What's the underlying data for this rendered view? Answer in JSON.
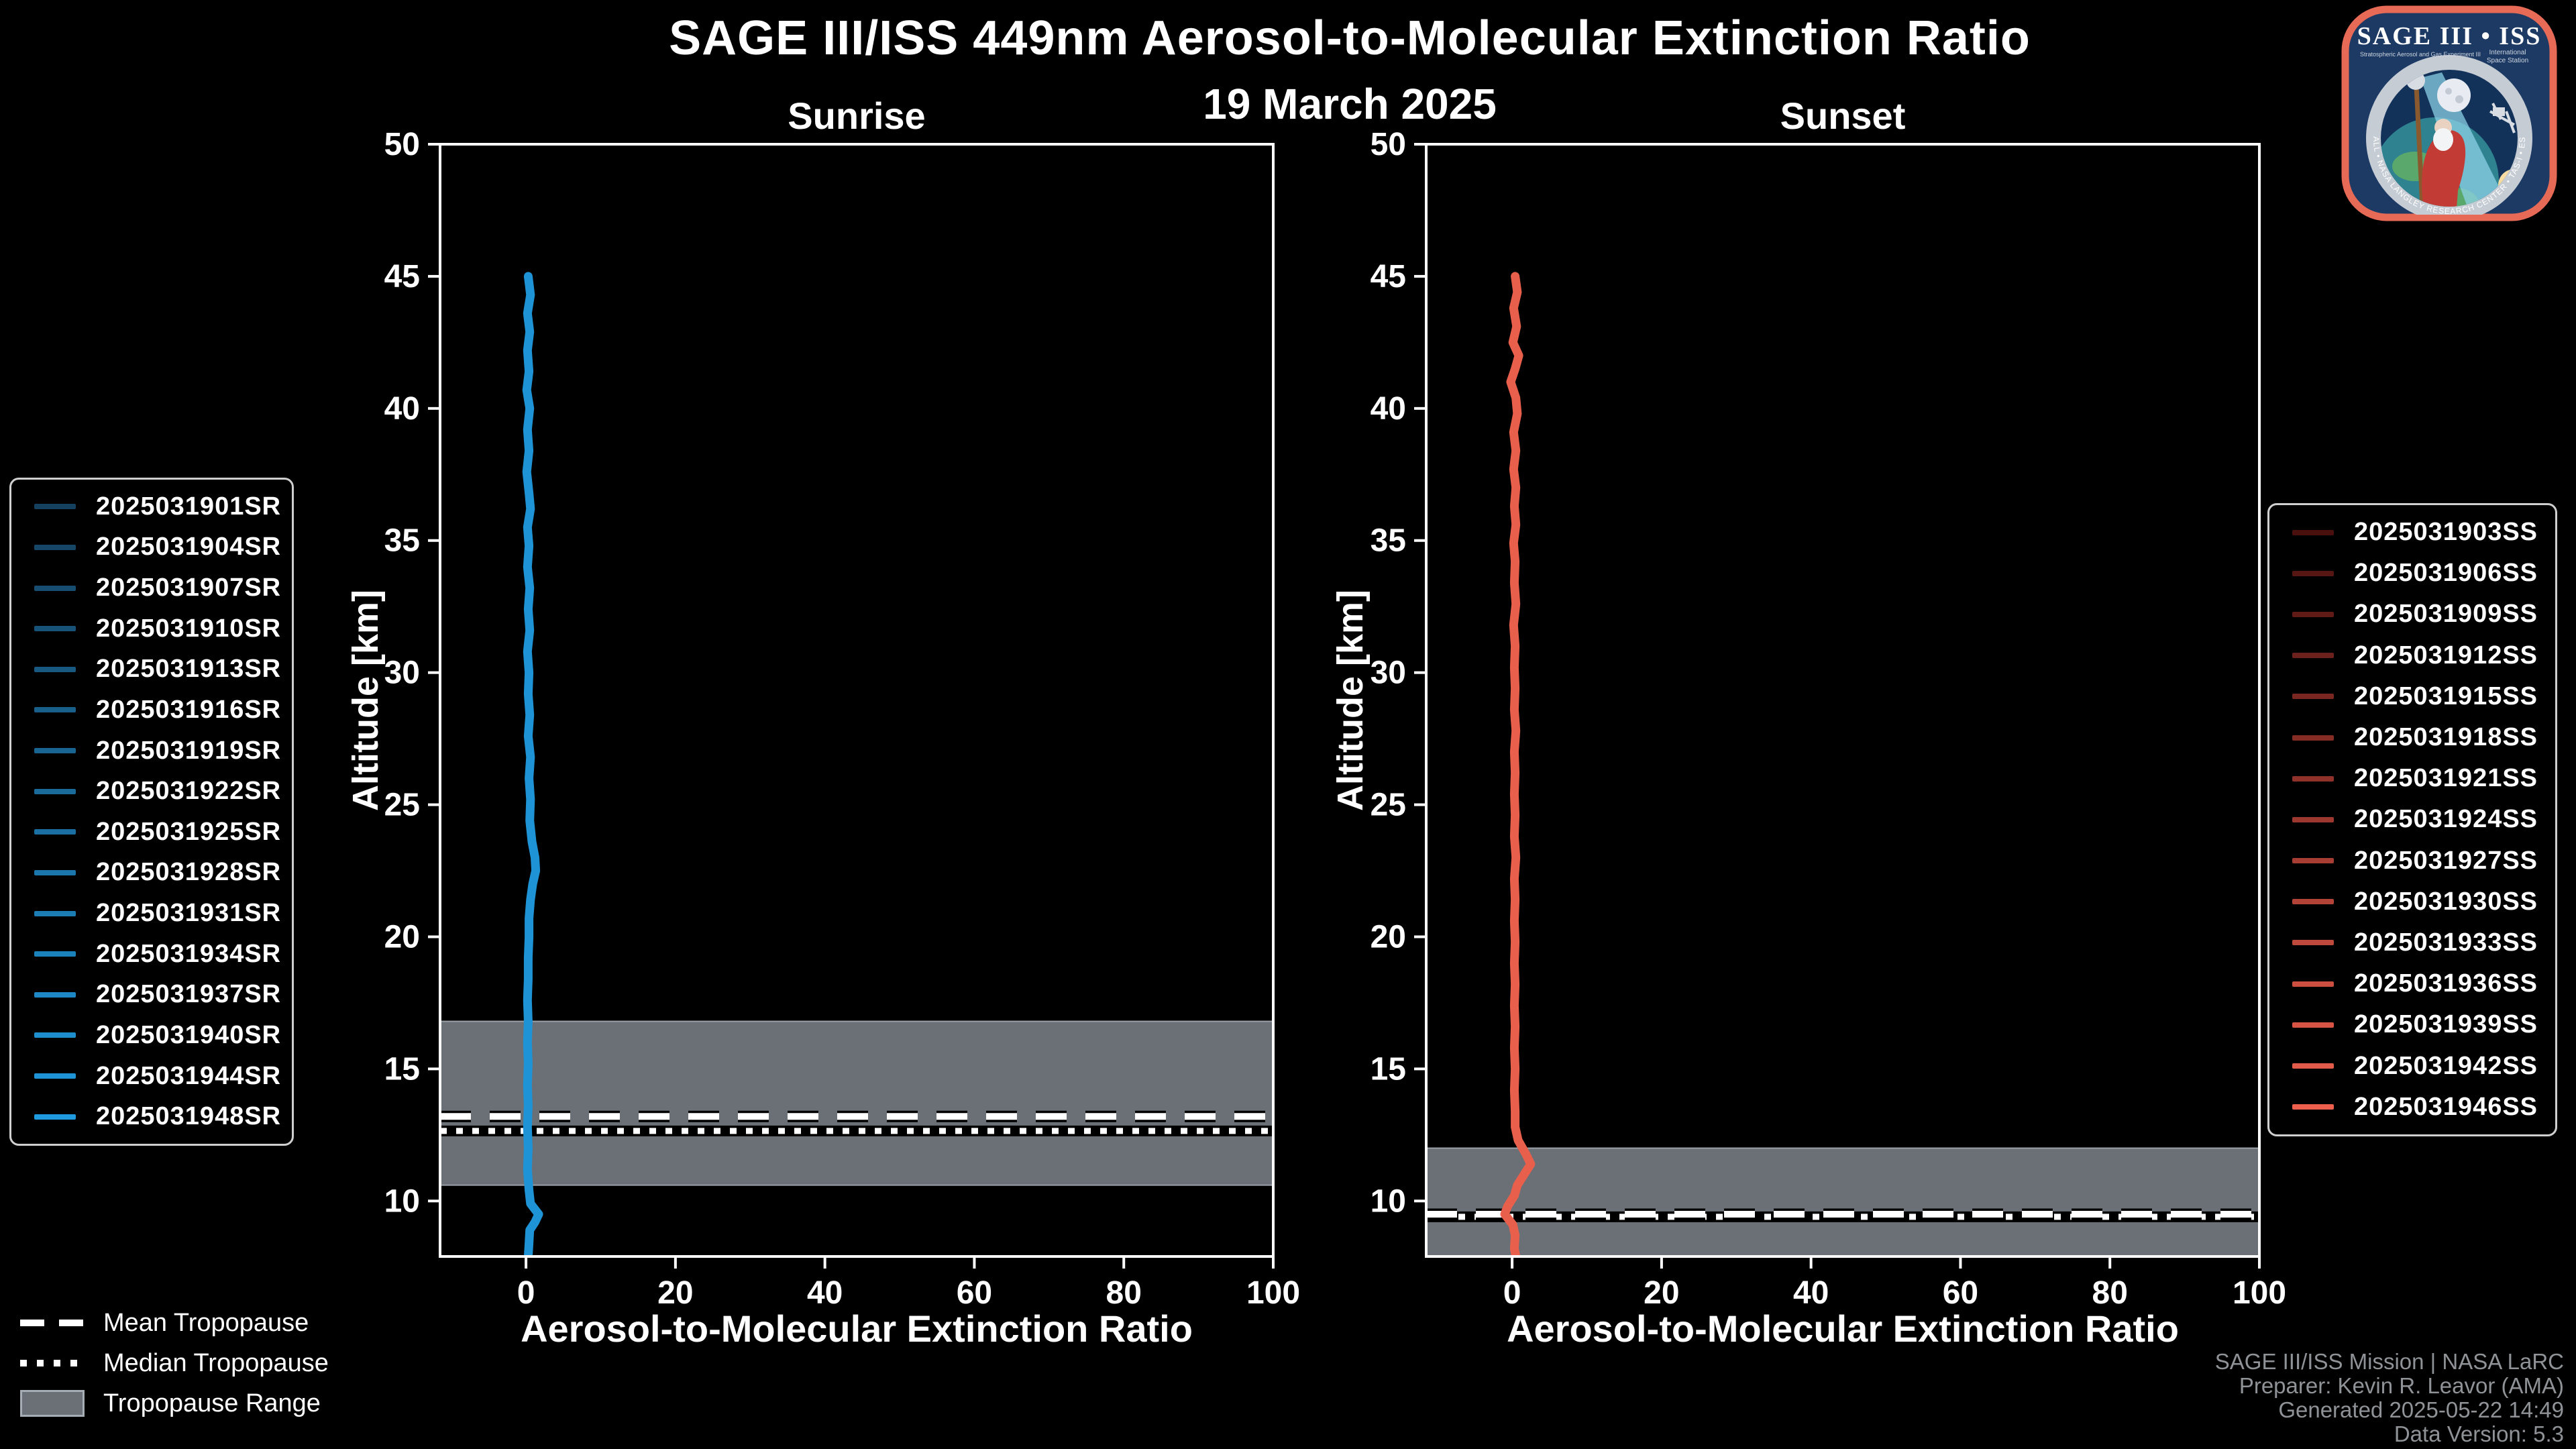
{
  "figure": {
    "title": "SAGE III/ISS 449nm Aerosol-to-Molecular Extinction Ratio",
    "date": "19 March 2025",
    "background": "#000000"
  },
  "panels": [
    {
      "title": "Sunrise",
      "xlabel": "Aerosol-to-Molecular Extinction Ratio",
      "ylabel": "Altitude [km]"
    },
    {
      "title": "Sunset",
      "xlabel": "Aerosol-to-Molecular Extinction Ratio",
      "ylabel": "Altitude [km]"
    }
  ],
  "tropopause_legend": {
    "mean_label": "Mean Tropopause",
    "median_label": "Median Tropopause",
    "range_label": "Tropopause Range",
    "range_color": "#6b7077",
    "range_edge_color": "#9aa0a7",
    "line_color": "#ffffff"
  },
  "event_legends": {
    "sunrise": {
      "entries": [
        {
          "label": "2025031901SR",
          "color": "#15415F"
        },
        {
          "label": "2025031904SR",
          "color": "#164767"
        },
        {
          "label": "2025031907SR",
          "color": "#164D70"
        },
        {
          "label": "2025031910SR",
          "color": "#175378"
        },
        {
          "label": "2025031913SR",
          "color": "#185981"
        },
        {
          "label": "2025031916SR",
          "color": "#185F89"
        },
        {
          "label": "2025031919SR",
          "color": "#196592"
        },
        {
          "label": "2025031922SR",
          "color": "#1A6B9A"
        },
        {
          "label": "2025031925SR",
          "color": "#1A70A3"
        },
        {
          "label": "2025031928SR",
          "color": "#1B76AB"
        },
        {
          "label": "2025031931SR",
          "color": "#1C7CB4"
        },
        {
          "label": "2025031934SR",
          "color": "#1C82BC"
        },
        {
          "label": "2025031937SR",
          "color": "#1D88C5"
        },
        {
          "label": "2025031940SR",
          "color": "#1E8ECD"
        },
        {
          "label": "2025031944SR",
          "color": "#1E94D6"
        },
        {
          "label": "2025031948SR",
          "color": "#1F9ADE"
        }
      ]
    },
    "sunset": {
      "entries": [
        {
          "label": "2025031903SS",
          "color": "#4A100E"
        },
        {
          "label": "2025031906SS",
          "color": "#561613"
        },
        {
          "label": "2025031909SS",
          "color": "#611B17"
        },
        {
          "label": "2025031912SS",
          "color": "#6D211C"
        },
        {
          "label": "2025031915SS",
          "color": "#792720"
        },
        {
          "label": "2025031918SS",
          "color": "#852C25"
        },
        {
          "label": "2025031921SS",
          "color": "#903229"
        },
        {
          "label": "2025031924SS",
          "color": "#9C382E"
        },
        {
          "label": "2025031927SS",
          "color": "#A83D33"
        },
        {
          "label": "2025031930SS",
          "color": "#B34337"
        },
        {
          "label": "2025031933SS",
          "color": "#BF493C"
        },
        {
          "label": "2025031936SS",
          "color": "#CB4E40"
        },
        {
          "label": "2025031939SS",
          "color": "#D75445"
        },
        {
          "label": "2025031942SS",
          "color": "#E25A49"
        },
        {
          "label": "2025031946SS",
          "color": "#EE5F4E"
        }
      ]
    }
  },
  "credits": {
    "mission": "SAGE III/ISS Mission | NASA LaRC",
    "preparer": "Preparer: Kevin R. Leavor (AMA)",
    "generated": "Generated 2025-05-22 14:49",
    "version": "Data Version: 5.3"
  },
  "logo": {
    "title": "SAGE III • ISS",
    "subtitle_left": "Stratospheric Aerosol and Gas Experiment III",
    "subtitle_right_1": "International",
    "subtitle_right_2": "Space Station",
    "rim_text": "BALL • NASA LANGLEY RESEARCH CENTER • TAS-I • ESA",
    "border_color": "#e66a55",
    "bg_color": "#1c3a64"
  },
  "chart_data": [
    {
      "type": "line",
      "panel": "Sunrise",
      "title": "Sunrise",
      "xlabel": "Aerosol-to-Molecular Extinction Ratio",
      "ylabel": "Altitude [km]",
      "xlim": [
        -11.5,
        100
      ],
      "ylim": [
        7.9,
        50
      ],
      "xticks": [
        0,
        20,
        40,
        60,
        80,
        100
      ],
      "yticks": [
        10,
        15,
        20,
        25,
        30,
        35,
        40,
        45,
        50
      ],
      "grid": false,
      "legend_position": "outside-left",
      "line_color": "#1E94D6",
      "n_profiles": 16,
      "tropopause": {
        "mean_km": 13.2,
        "median_km": 12.65,
        "range_km": [
          10.6,
          16.8
        ]
      },
      "series": [
        {
          "name": "composite of 16 sunrise extinction-ratio profiles (x = ratio, y = altitude km)",
          "points": [
            [
              0.3,
              45.0
            ],
            [
              0.6,
              44.3
            ],
            [
              0.2,
              43.6
            ],
            [
              0.5,
              42.9
            ],
            [
              0.2,
              42.2
            ],
            [
              0.4,
              41.4
            ],
            [
              0.1,
              40.7
            ],
            [
              0.5,
              40.0
            ],
            [
              0.2,
              39.2
            ],
            [
              0.4,
              38.4
            ],
            [
              0.1,
              37.6
            ],
            [
              0.4,
              36.8
            ],
            [
              0.6,
              36.2
            ],
            [
              0.2,
              35.5
            ],
            [
              0.4,
              34.8
            ],
            [
              0.2,
              34.0
            ],
            [
              0.5,
              33.2
            ],
            [
              0.3,
              32.4
            ],
            [
              0.5,
              31.6
            ],
            [
              0.2,
              30.8
            ],
            [
              0.4,
              30.0
            ],
            [
              0.3,
              29.2
            ],
            [
              0.5,
              28.4
            ],
            [
              0.3,
              27.6
            ],
            [
              0.6,
              26.8
            ],
            [
              0.4,
              26.0
            ],
            [
              0.6,
              25.2
            ],
            [
              0.5,
              24.4
            ],
            [
              0.8,
              23.6
            ],
            [
              1.2,
              23.0
            ],
            [
              1.3,
              22.5
            ],
            [
              0.9,
              22.0
            ],
            [
              0.6,
              21.4
            ],
            [
              0.4,
              20.7
            ],
            [
              0.4,
              20.0
            ],
            [
              0.3,
              19.2
            ],
            [
              0.3,
              18.4
            ],
            [
              0.2,
              17.6
            ],
            [
              0.3,
              16.8
            ],
            [
              0.2,
              16.0
            ],
            [
              0.3,
              15.2
            ],
            [
              0.2,
              14.4
            ],
            [
              0.3,
              13.6
            ],
            [
              0.2,
              12.8
            ],
            [
              0.3,
              12.0
            ],
            [
              0.2,
              11.2
            ],
            [
              0.4,
              10.4
            ],
            [
              0.6,
              9.9
            ],
            [
              1.7,
              9.5
            ],
            [
              1.2,
              9.2
            ],
            [
              0.5,
              8.9
            ],
            [
              0.4,
              8.4
            ],
            [
              0.3,
              7.9
            ]
          ]
        }
      ]
    },
    {
      "type": "line",
      "panel": "Sunset",
      "title": "Sunset",
      "xlabel": "Aerosol-to-Molecular Extinction Ratio",
      "ylabel": "Altitude [km]",
      "xlim": [
        -11.5,
        100
      ],
      "ylim": [
        7.9,
        50
      ],
      "xticks": [
        0,
        20,
        40,
        60,
        80,
        100
      ],
      "yticks": [
        10,
        15,
        20,
        25,
        30,
        35,
        40,
        45,
        50
      ],
      "grid": false,
      "legend_position": "outside-right",
      "line_color": "#E8604C",
      "n_profiles": 15,
      "tropopause": {
        "mean_km": 9.5,
        "median_km": 9.4,
        "range_km": [
          7.9,
          12.0
        ]
      },
      "series": [
        {
          "name": "composite of 15 sunset extinction-ratio profiles (x = ratio, y = altitude km)",
          "points": [
            [
              0.4,
              45.0
            ],
            [
              0.7,
              44.4
            ],
            [
              0.2,
              43.8
            ],
            [
              0.6,
              43.1
            ],
            [
              0.1,
              42.5
            ],
            [
              0.9,
              42.0
            ],
            [
              0.4,
              41.5
            ],
            [
              -0.2,
              41.0
            ],
            [
              0.5,
              40.4
            ],
            [
              0.7,
              39.8
            ],
            [
              0.2,
              39.1
            ],
            [
              0.5,
              38.4
            ],
            [
              0.2,
              37.7
            ],
            [
              0.5,
              37.0
            ],
            [
              0.3,
              36.3
            ],
            [
              0.5,
              35.6
            ],
            [
              0.2,
              34.9
            ],
            [
              0.4,
              34.2
            ],
            [
              0.3,
              33.4
            ],
            [
              0.5,
              32.6
            ],
            [
              0.2,
              31.8
            ],
            [
              0.4,
              31.0
            ],
            [
              0.3,
              30.2
            ],
            [
              0.4,
              29.4
            ],
            [
              0.3,
              28.6
            ],
            [
              0.5,
              27.8
            ],
            [
              0.3,
              27.0
            ],
            [
              0.4,
              26.2
            ],
            [
              0.3,
              25.4
            ],
            [
              0.4,
              24.6
            ],
            [
              0.3,
              23.8
            ],
            [
              0.5,
              23.0
            ],
            [
              0.3,
              22.2
            ],
            [
              0.4,
              21.4
            ],
            [
              0.3,
              20.6
            ],
            [
              0.4,
              19.8
            ],
            [
              0.3,
              19.0
            ],
            [
              0.4,
              18.2
            ],
            [
              0.3,
              17.4
            ],
            [
              0.4,
              16.6
            ],
            [
              0.3,
              15.8
            ],
            [
              0.4,
              15.0
            ],
            [
              0.3,
              14.2
            ],
            [
              0.4,
              13.4
            ],
            [
              0.4,
              12.8
            ],
            [
              0.8,
              12.3
            ],
            [
              1.8,
              11.8
            ],
            [
              2.5,
              11.4
            ],
            [
              1.6,
              11.0
            ],
            [
              0.7,
              10.6
            ],
            [
              0.3,
              10.2
            ],
            [
              -0.6,
              9.8
            ],
            [
              -1.0,
              9.5
            ],
            [
              0.1,
              9.1
            ],
            [
              0.4,
              8.7
            ],
            [
              0.3,
              8.2
            ],
            [
              0.5,
              7.9
            ]
          ]
        }
      ]
    }
  ]
}
